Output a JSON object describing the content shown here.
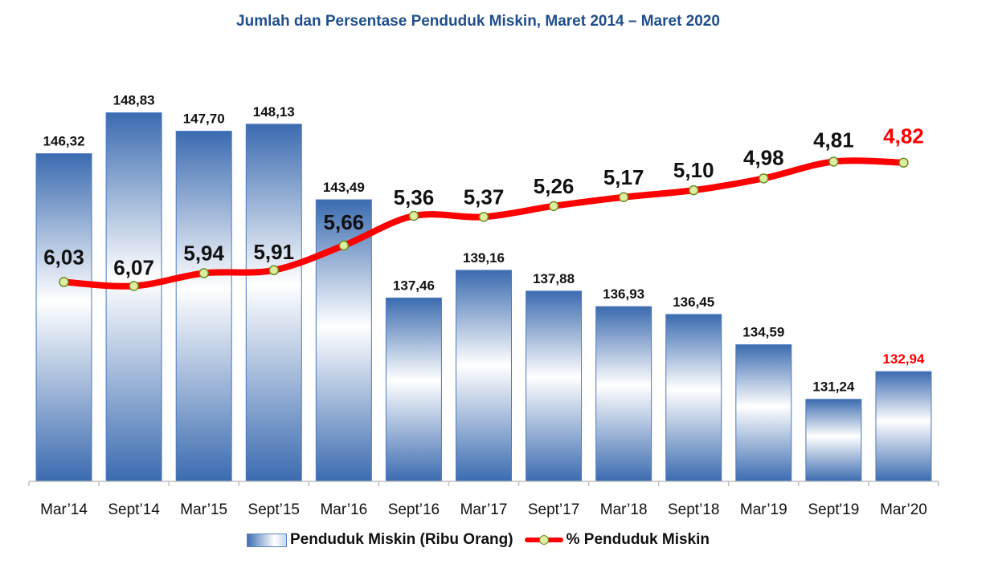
{
  "colors": {
    "title": "#1f4e8c",
    "bar_dark": "#3b6bb0",
    "bar_light": "#ffffff",
    "line": "#ff0000",
    "marker_fill": "#ddeea0",
    "marker_stroke": "#6b8e23",
    "label": "#111111",
    "highlight": "#ff0000"
  },
  "chart_data": {
    "type": "bar",
    "title": "Jumlah dan Persentase Penduduk Miskin, Maret 2014 – Maret 2020",
    "categories": [
      "Mar’14",
      "Sept’14",
      "Mar’15",
      "Sept’15",
      "Mar’16",
      "Sept’16",
      "Mar’17",
      "Sept’17",
      "Mar’18",
      "Sept’18",
      "Mar’19",
      "Sept'19",
      "Mar’20"
    ],
    "series": [
      {
        "name": "Penduduk Miskin (Ribu Orang)",
        "kind": "bar",
        "values": [
          146.32,
          148.83,
          147.7,
          148.13,
          143.49,
          137.46,
          139.16,
          137.88,
          136.93,
          136.45,
          134.59,
          131.24,
          132.94
        ],
        "labels": [
          "146,32",
          "148,83",
          "147,70",
          "148,13",
          "143,49",
          "137,46",
          "139,16",
          "137,88",
          "136,93",
          "136,45",
          "134,59",
          "131,24",
          "132,94"
        ]
      },
      {
        "name": "% Penduduk Miskin",
        "kind": "line",
        "values": [
          6.03,
          6.07,
          5.94,
          5.91,
          5.66,
          5.36,
          5.37,
          5.26,
          5.17,
          5.1,
          4.98,
          4.81,
          4.82
        ],
        "labels": [
          "6,03",
          "6,07",
          "5,94",
          "5,91",
          "5,66",
          "5,36",
          "5,37",
          "5,26",
          "5,17",
          "5,10",
          "4,98",
          "4,81",
          "4,82"
        ]
      }
    ],
    "highlight_last": true,
    "legend": [
      "Penduduk Miskin (Ribu Orang)",
      "% Penduduk Miskin"
    ],
    "legend_position": "bottom",
    "grid": false
  }
}
